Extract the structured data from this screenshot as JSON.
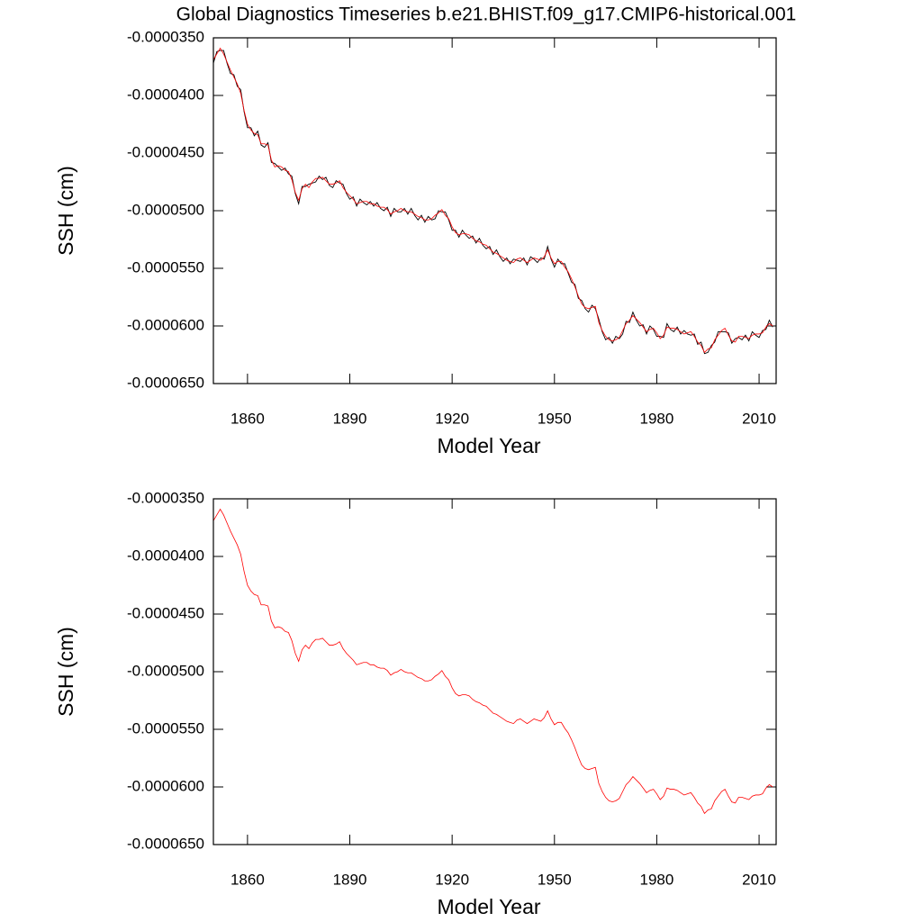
{
  "chart_data": [
    {
      "type": "line",
      "title": "Global Diagnostics Timeseries b.e21.BHIST.f09_g17.CMIP6-historical.001",
      "x_label": "Model Year",
      "y_label": "SSH (cm)",
      "xlim": [
        1850,
        2015
      ],
      "xticks": [
        1860,
        1890,
        1920,
        1950,
        1980,
        2010
      ],
      "ylim": [
        -6.5e-05,
        -3.5e-05
      ],
      "yticks": [
        {
          "value": -6.5e-05,
          "label": "-0.0000650"
        },
        {
          "value": -6e-05,
          "label": "-0.0000600"
        },
        {
          "value": -5.5e-05,
          "label": "-0.0000550"
        },
        {
          "value": -5e-05,
          "label": "-0.0000500"
        },
        {
          "value": -4.5e-05,
          "label": "-0.0000450"
        },
        {
          "value": -4e-05,
          "label": "-0.0000400"
        },
        {
          "value": -3.5e-05,
          "label": "-0.0000350"
        }
      ],
      "x": [
        1850,
        1851,
        1852,
        1853,
        1854,
        1855,
        1856,
        1857,
        1858,
        1859,
        1860,
        1861,
        1862,
        1863,
        1864,
        1865,
        1866,
        1867,
        1868,
        1869,
        1870,
        1871,
        1872,
        1873,
        1874,
        1875,
        1876,
        1877,
        1878,
        1879,
        1880,
        1881,
        1882,
        1883,
        1884,
        1885,
        1886,
        1887,
        1888,
        1889,
        1890,
        1891,
        1892,
        1893,
        1894,
        1895,
        1896,
        1897,
        1898,
        1899,
        1900,
        1901,
        1902,
        1903,
        1904,
        1905,
        1906,
        1907,
        1908,
        1909,
        1910,
        1911,
        1912,
        1913,
        1914,
        1915,
        1916,
        1917,
        1918,
        1919,
        1920,
        1921,
        1922,
        1923,
        1924,
        1925,
        1926,
        1927,
        1928,
        1929,
        1930,
        1931,
        1932,
        1933,
        1934,
        1935,
        1936,
        1937,
        1938,
        1939,
        1940,
        1941,
        1942,
        1943,
        1944,
        1945,
        1946,
        1947,
        1948,
        1949,
        1950,
        1951,
        1952,
        1953,
        1954,
        1955,
        1956,
        1957,
        1958,
        1959,
        1960,
        1961,
        1962,
        1963,
        1964,
        1965,
        1966,
        1967,
        1968,
        1969,
        1970,
        1971,
        1972,
        1973,
        1974,
        1975,
        1976,
        1977,
        1978,
        1979,
        1980,
        1981,
        1982,
        1983,
        1984,
        1985,
        1986,
        1987,
        1988,
        1989,
        1990,
        1991,
        1992,
        1993,
        1994,
        1995,
        1996,
        1997,
        1998,
        1999,
        2000,
        2001,
        2002,
        2003,
        2004,
        2005,
        2006,
        2007,
        2008,
        2009,
        2010,
        2011,
        2012,
        2013,
        2014
      ],
      "series": [
        {
          "color": "#000000",
          "values": [
            -3.72e-05,
            -3.62e-05,
            -3.61e-05,
            -3.61e-05,
            -3.72e-05,
            -3.81e-05,
            -3.82e-05,
            -3.92e-05,
            -3.95e-05,
            -4.14e-05,
            -4.28e-05,
            -4.28e-05,
            -4.35e-05,
            -4.31e-05,
            -4.43e-05,
            -4.45e-05,
            -4.41e-05,
            -4.58e-05,
            -4.59e-05,
            -4.62e-05,
            -4.65e-05,
            -4.63e-05,
            -4.68e-05,
            -4.7e-05,
            -4.85e-05,
            -4.94e-05,
            -4.79e-05,
            -4.79e-05,
            -4.77e-05,
            -4.76e-05,
            -4.75e-05,
            -4.7e-05,
            -4.73e-05,
            -4.71e-05,
            -4.78e-05,
            -4.8e-05,
            -4.74e-05,
            -4.76e-05,
            -4.77e-05,
            -4.85e-05,
            -4.9e-05,
            -4.88e-05,
            -4.96e-05,
            -4.9e-05,
            -4.93e-05,
            -4.95e-05,
            -4.92e-05,
            -4.96e-05,
            -4.93e-05,
            -4.98e-05,
            -5e-05,
            -4.97e-05,
            -5.05e-05,
            -4.98e-05,
            -5.01e-05,
            -5.01e-05,
            -4.98e-05,
            -5.03e-05,
            -4.98e-05,
            -5.04e-05,
            -5.08e-05,
            -5.04e-05,
            -5.1e-05,
            -5.05e-05,
            -5.08e-05,
            -5.07e-05,
            -5e-05,
            -5.01e-05,
            -5.01e-05,
            -5.08e-05,
            -5.17e-05,
            -5.17e-05,
            -5.23e-05,
            -5.17e-05,
            -5.21e-05,
            -5.24e-05,
            -5.22e-05,
            -5.28e-05,
            -5.24e-05,
            -5.3e-05,
            -5.33e-05,
            -5.31e-05,
            -5.38e-05,
            -5.34e-05,
            -5.4e-05,
            -5.44e-05,
            -5.41e-05,
            -5.46e-05,
            -5.42e-05,
            -5.43e-05,
            -5.44e-05,
            -5.41e-05,
            -5.47e-05,
            -5.4e-05,
            -5.42e-05,
            -5.45e-05,
            -5.41e-05,
            -5.42e-05,
            -5.31e-05,
            -5.42e-05,
            -5.49e-05,
            -5.42e-05,
            -5.46e-05,
            -5.46e-05,
            -5.54e-05,
            -5.62e-05,
            -5.64e-05,
            -5.76e-05,
            -5.78e-05,
            -5.85e-05,
            -5.88e-05,
            -5.82e-05,
            -5.85e-05,
            -5.94e-05,
            -6.05e-05,
            -6.12e-05,
            -6.1e-05,
            -6.15e-05,
            -6.09e-05,
            -6.11e-05,
            -6.07e-05,
            -5.96e-05,
            -5.97e-05,
            -5.88e-05,
            -5.95e-05,
            -6e-05,
            -5.99e-05,
            -6.07e-05,
            -6e-05,
            -6.03e-05,
            -6.09e-05,
            -6.09e-05,
            -6.1e-05,
            -5.98e-05,
            -6.03e-05,
            -6.05e-05,
            -6.01e-05,
            -6.07e-05,
            -6.04e-05,
            -6.07e-05,
            -6.08e-05,
            -6.07e-05,
            -6.16e-05,
            -6.14e-05,
            -6.24e-05,
            -6.23e-05,
            -6.17e-05,
            -6.14e-05,
            -6.05e-05,
            -6.05e-05,
            -6.05e-05,
            -6.06e-05,
            -6.15e-05,
            -6.11e-05,
            -6.1e-05,
            -6.12e-05,
            -6.08e-05,
            -6.13e-05,
            -6.05e-05,
            -6.08e-05,
            -6.1e-05,
            -6.04e-05,
            -6.03e-05,
            -5.95e-05,
            -6.01e-05
          ]
        },
        {
          "color": "#ff0000",
          "values": [
            -3.69e-05,
            -3.64e-05,
            -3.59e-05,
            -3.64e-05,
            -3.71e-05,
            -3.78e-05,
            -3.84e-05,
            -3.9e-05,
            -3.98e-05,
            -4.13e-05,
            -4.25e-05,
            -4.3e-05,
            -4.33e-05,
            -4.34e-05,
            -4.42e-05,
            -4.42e-05,
            -4.43e-05,
            -4.56e-05,
            -4.62e-05,
            -4.61e-05,
            -4.62e-05,
            -4.65e-05,
            -4.66e-05,
            -4.73e-05,
            -4.84e-05,
            -4.91e-05,
            -4.81e-05,
            -4.77e-05,
            -4.8e-05,
            -4.75e-05,
            -4.72e-05,
            -4.72e-05,
            -4.71e-05,
            -4.74e-05,
            -4.77e-05,
            -4.77e-05,
            -4.76e-05,
            -4.74e-05,
            -4.8e-05,
            -4.84e-05,
            -4.87e-05,
            -4.9e-05,
            -4.94e-05,
            -4.93e-05,
            -4.92e-05,
            -4.92e-05,
            -4.94e-05,
            -4.94e-05,
            -4.96e-05,
            -4.97e-05,
            -4.97e-05,
            -4.99e-05,
            -5.03e-05,
            -5.01e-05,
            -5e-05,
            -4.98e-05,
            -5e-05,
            -5.01e-05,
            -5.01e-05,
            -5.03e-05,
            -5.05e-05,
            -5.06e-05,
            -5.08e-05,
            -5.08e-05,
            -5.07e-05,
            -5.04e-05,
            -5.02e-05,
            -4.99e-05,
            -5.04e-05,
            -5.07e-05,
            -5.14e-05,
            -5.19e-05,
            -5.21e-05,
            -5.2e-05,
            -5.2e-05,
            -5.21e-05,
            -5.24e-05,
            -5.26e-05,
            -5.27e-05,
            -5.29e-05,
            -5.3e-05,
            -5.33e-05,
            -5.36e-05,
            -5.37e-05,
            -5.39e-05,
            -5.41e-05,
            -5.43e-05,
            -5.44e-05,
            -5.45e-05,
            -5.42e-05,
            -5.41e-05,
            -5.43e-05,
            -5.45e-05,
            -5.43e-05,
            -5.41e-05,
            -5.42e-05,
            -5.43e-05,
            -5.4e-05,
            -5.34e-05,
            -5.41e-05,
            -5.46e-05,
            -5.44e-05,
            -5.44e-05,
            -5.49e-05,
            -5.53e-05,
            -5.59e-05,
            -5.66e-05,
            -5.74e-05,
            -5.81e-05,
            -5.84e-05,
            -5.85e-05,
            -5.84e-05,
            -5.83e-05,
            -5.97e-05,
            -6.04e-05,
            -6.09e-05,
            -6.12e-05,
            -6.13e-05,
            -6.12e-05,
            -6.1e-05,
            -6.04e-05,
            -5.98e-05,
            -5.95e-05,
            -5.91e-05,
            -5.94e-05,
            -5.97e-05,
            -6.01e-05,
            -6.05e-05,
            -6.03e-05,
            -6.02e-05,
            -6.06e-05,
            -6.11e-05,
            -6.08e-05,
            -6.01e-05,
            -6.02e-05,
            -6.02e-05,
            -6.03e-05,
            -6.05e-05,
            -6.07e-05,
            -6.06e-05,
            -6.05e-05,
            -6.09e-05,
            -6.14e-05,
            -6.17e-05,
            -6.23e-05,
            -6.2e-05,
            -6.19e-05,
            -6.12e-05,
            -6.08e-05,
            -6.04e-05,
            -6.02e-05,
            -6.08e-05,
            -6.13e-05,
            -6.14e-05,
            -6.09e-05,
            -6.09e-05,
            -6.1e-05,
            -6.11e-05,
            -6.08e-05,
            -6.07e-05,
            -6.07e-05,
            -6.06e-05,
            -6.01e-05,
            -5.98e-05,
            -6e-05
          ]
        }
      ]
    },
    {
      "type": "line",
      "x_label": "Model Year",
      "y_label": "SSH (cm)",
      "xlim": [
        1850,
        2015
      ],
      "xticks": [
        1860,
        1890,
        1920,
        1950,
        1980,
        2010
      ],
      "ylim": [
        -6.5e-05,
        -3.5e-05
      ],
      "yticks": [
        {
          "value": -6.5e-05,
          "label": "-0.0000650"
        },
        {
          "value": -6e-05,
          "label": "-0.0000600"
        },
        {
          "value": -5.5e-05,
          "label": "-0.0000550"
        },
        {
          "value": -5e-05,
          "label": "-0.0000500"
        },
        {
          "value": -4.5e-05,
          "label": "-0.0000450"
        },
        {
          "value": -4e-05,
          "label": "-0.0000400"
        },
        {
          "value": -3.5e-05,
          "label": "-0.0000350"
        }
      ],
      "x": [
        1850,
        1851,
        1852,
        1853,
        1854,
        1855,
        1856,
        1857,
        1858,
        1859,
        1860,
        1861,
        1862,
        1863,
        1864,
        1865,
        1866,
        1867,
        1868,
        1869,
        1870,
        1871,
        1872,
        1873,
        1874,
        1875,
        1876,
        1877,
        1878,
        1879,
        1880,
        1881,
        1882,
        1883,
        1884,
        1885,
        1886,
        1887,
        1888,
        1889,
        1890,
        1891,
        1892,
        1893,
        1894,
        1895,
        1896,
        1897,
        1898,
        1899,
        1900,
        1901,
        1902,
        1903,
        1904,
        1905,
        1906,
        1907,
        1908,
        1909,
        1910,
        1911,
        1912,
        1913,
        1914,
        1915,
        1916,
        1917,
        1918,
        1919,
        1920,
        1921,
        1922,
        1923,
        1924,
        1925,
        1926,
        1927,
        1928,
        1929,
        1930,
        1931,
        1932,
        1933,
        1934,
        1935,
        1936,
        1937,
        1938,
        1939,
        1940,
        1941,
        1942,
        1943,
        1944,
        1945,
        1946,
        1947,
        1948,
        1949,
        1950,
        1951,
        1952,
        1953,
        1954,
        1955,
        1956,
        1957,
        1958,
        1959,
        1960,
        1961,
        1962,
        1963,
        1964,
        1965,
        1966,
        1967,
        1968,
        1969,
        1970,
        1971,
        1972,
        1973,
        1974,
        1975,
        1976,
        1977,
        1978,
        1979,
        1980,
        1981,
        1982,
        1983,
        1984,
        1985,
        1986,
        1987,
        1988,
        1989,
        1990,
        1991,
        1992,
        1993,
        1994,
        1995,
        1996,
        1997,
        1998,
        1999,
        2000,
        2001,
        2002,
        2003,
        2004,
        2005,
        2006,
        2007,
        2008,
        2009,
        2010,
        2011,
        2012,
        2013,
        2014
      ],
      "series": [
        {
          "color": "#ff0000",
          "values": [
            -3.69e-05,
            -3.64e-05,
            -3.59e-05,
            -3.64e-05,
            -3.71e-05,
            -3.78e-05,
            -3.84e-05,
            -3.9e-05,
            -3.98e-05,
            -4.13e-05,
            -4.25e-05,
            -4.3e-05,
            -4.33e-05,
            -4.34e-05,
            -4.42e-05,
            -4.42e-05,
            -4.43e-05,
            -4.56e-05,
            -4.62e-05,
            -4.61e-05,
            -4.62e-05,
            -4.65e-05,
            -4.66e-05,
            -4.73e-05,
            -4.84e-05,
            -4.91e-05,
            -4.81e-05,
            -4.77e-05,
            -4.8e-05,
            -4.75e-05,
            -4.72e-05,
            -4.72e-05,
            -4.71e-05,
            -4.74e-05,
            -4.77e-05,
            -4.77e-05,
            -4.76e-05,
            -4.74e-05,
            -4.8e-05,
            -4.84e-05,
            -4.87e-05,
            -4.9e-05,
            -4.94e-05,
            -4.93e-05,
            -4.92e-05,
            -4.92e-05,
            -4.94e-05,
            -4.94e-05,
            -4.96e-05,
            -4.97e-05,
            -4.97e-05,
            -4.99e-05,
            -5.03e-05,
            -5.01e-05,
            -5e-05,
            -4.98e-05,
            -5e-05,
            -5.01e-05,
            -5.01e-05,
            -5.03e-05,
            -5.05e-05,
            -5.06e-05,
            -5.08e-05,
            -5.08e-05,
            -5.07e-05,
            -5.04e-05,
            -5.02e-05,
            -4.99e-05,
            -5.04e-05,
            -5.07e-05,
            -5.14e-05,
            -5.19e-05,
            -5.21e-05,
            -5.2e-05,
            -5.2e-05,
            -5.21e-05,
            -5.24e-05,
            -5.26e-05,
            -5.27e-05,
            -5.29e-05,
            -5.3e-05,
            -5.33e-05,
            -5.36e-05,
            -5.37e-05,
            -5.39e-05,
            -5.41e-05,
            -5.43e-05,
            -5.44e-05,
            -5.45e-05,
            -5.42e-05,
            -5.41e-05,
            -5.43e-05,
            -5.45e-05,
            -5.43e-05,
            -5.41e-05,
            -5.42e-05,
            -5.43e-05,
            -5.4e-05,
            -5.34e-05,
            -5.41e-05,
            -5.46e-05,
            -5.44e-05,
            -5.44e-05,
            -5.49e-05,
            -5.53e-05,
            -5.59e-05,
            -5.66e-05,
            -5.74e-05,
            -5.81e-05,
            -5.84e-05,
            -5.85e-05,
            -5.84e-05,
            -5.83e-05,
            -5.97e-05,
            -6.04e-05,
            -6.09e-05,
            -6.12e-05,
            -6.13e-05,
            -6.12e-05,
            -6.1e-05,
            -6.04e-05,
            -5.98e-05,
            -5.95e-05,
            -5.91e-05,
            -5.94e-05,
            -5.97e-05,
            -6.01e-05,
            -6.05e-05,
            -6.03e-05,
            -6.02e-05,
            -6.06e-05,
            -6.11e-05,
            -6.08e-05,
            -6.01e-05,
            -6.02e-05,
            -6.02e-05,
            -6.03e-05,
            -6.05e-05,
            -6.07e-05,
            -6.06e-05,
            -6.05e-05,
            -6.09e-05,
            -6.14e-05,
            -6.17e-05,
            -6.23e-05,
            -6.2e-05,
            -6.19e-05,
            -6.12e-05,
            -6.08e-05,
            -6.04e-05,
            -6.02e-05,
            -6.08e-05,
            -6.13e-05,
            -6.14e-05,
            -6.09e-05,
            -6.09e-05,
            -6.1e-05,
            -6.11e-05,
            -6.08e-05,
            -6.07e-05,
            -6.07e-05,
            -6.06e-05,
            -6.01e-05,
            -5.98e-05,
            -6e-05
          ]
        }
      ]
    }
  ]
}
